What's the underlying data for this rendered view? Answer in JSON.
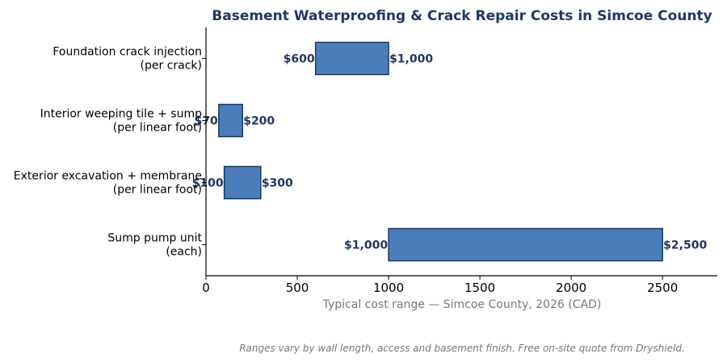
{
  "chart_data": {
    "type": "bar",
    "orientation": "horizontal",
    "title": "Basement Waterproofing & Crack Repair Costs in Simcoe County",
    "xlabel": "Typical cost range — Simcoe County, 2026 (CAD)",
    "ylabel": "",
    "xlim": [
      0,
      2800
    ],
    "xticks": [
      0,
      500,
      1000,
      1500,
      2000,
      2500
    ],
    "grid": false,
    "categories": [
      [
        "Foundation crack injection",
        "(per crack)"
      ],
      [
        "Interior weeping tile + sump",
        "(per linear foot)"
      ],
      [
        "Exterior excavation + membrane",
        "(per linear foot)"
      ],
      [
        "Sump pump unit",
        "(each)"
      ]
    ],
    "ranges": [
      {
        "low": 600,
        "high": 1000,
        "low_label": "$600",
        "high_label": "$1,000"
      },
      {
        "low": 70,
        "high": 200,
        "low_label": "$70",
        "high_label": "$200"
      },
      {
        "low": 100,
        "high": 300,
        "low_label": "$100",
        "high_label": "$300"
      },
      {
        "low": 1000,
        "high": 2500,
        "low_label": "$1,000",
        "high_label": "$2,500"
      }
    ],
    "bar_color": "#4a7ebb",
    "bar_edge_color": "#1f3864",
    "label_color": "#1f3864"
  },
  "footnote": "Ranges vary by wall length, access and basement finish. Free on-site quote from Dryshield."
}
